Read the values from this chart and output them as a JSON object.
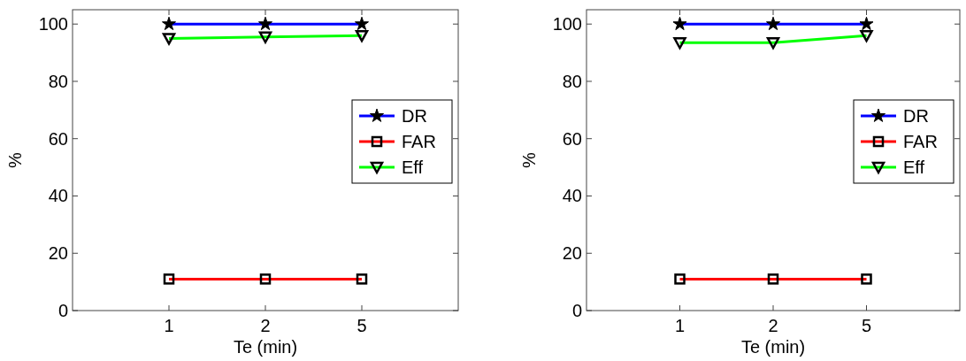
{
  "chart_data": [
    {
      "type": "line",
      "categories": [
        "1",
        "2",
        "5"
      ],
      "xlabel": "Te (min)",
      "ylabel": "%",
      "ylim": [
        0,
        105
      ],
      "yticks": [
        0,
        20,
        40,
        60,
        80,
        100
      ],
      "grid": false,
      "legend": "right",
      "series": [
        {
          "name": "DR",
          "color": "#0000ff",
          "marker": "star",
          "values": [
            100,
            100,
            100
          ]
        },
        {
          "name": "FAR",
          "color": "#ff0000",
          "marker": "square",
          "values": [
            11,
            11,
            11
          ]
        },
        {
          "name": "Eff",
          "color": "#00ff00",
          "marker": "triangle",
          "values": [
            95,
            95.5,
            96
          ]
        }
      ]
    },
    {
      "type": "line",
      "categories": [
        "1",
        "2",
        "5"
      ],
      "xlabel": "Te (min)",
      "ylabel": "%",
      "ylim": [
        0,
        105
      ],
      "yticks": [
        0,
        20,
        40,
        60,
        80,
        100
      ],
      "grid": false,
      "legend": "right",
      "series": [
        {
          "name": "DR",
          "color": "#0000ff",
          "marker": "star",
          "values": [
            100,
            100,
            100
          ]
        },
        {
          "name": "FAR",
          "color": "#ff0000",
          "marker": "square",
          "values": [
            11,
            11,
            11
          ]
        },
        {
          "name": "Eff",
          "color": "#00ff00",
          "marker": "triangle",
          "values": [
            93.5,
            93.5,
            96
          ]
        }
      ]
    }
  ]
}
